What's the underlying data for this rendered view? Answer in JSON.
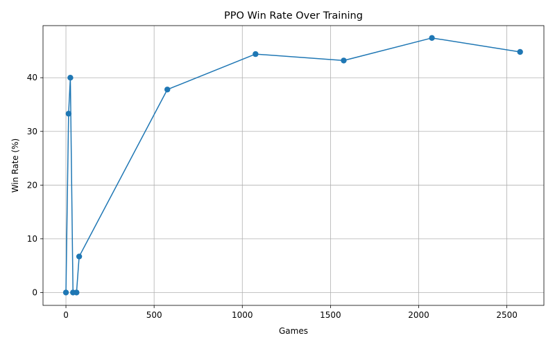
{
  "chart_data": {
    "type": "line",
    "title": "PPO Win Rate Over Training",
    "xlabel": "Games",
    "ylabel": "Win Rate (%)",
    "xlim": [
      -130,
      2710
    ],
    "ylim": [
      -2.4,
      49.7
    ],
    "xticks": [
      0,
      500,
      1000,
      1500,
      2000,
      2500
    ],
    "yticks": [
      0,
      10,
      20,
      30,
      40
    ],
    "grid": true,
    "marker": "circle",
    "series": [
      {
        "color": "#1f77b4",
        "points": [
          {
            "x": 0,
            "y": 0
          },
          {
            "x": 15,
            "y": 33.3
          },
          {
            "x": 25,
            "y": 40.0
          },
          {
            "x": 40,
            "y": 0
          },
          {
            "x": 60,
            "y": 0
          },
          {
            "x": 75,
            "y": 6.7
          },
          {
            "x": 575,
            "y": 37.8
          },
          {
            "x": 1075,
            "y": 44.4
          },
          {
            "x": 1575,
            "y": 43.2
          },
          {
            "x": 2075,
            "y": 47.4
          },
          {
            "x": 2575,
            "y": 44.8
          }
        ]
      }
    ]
  }
}
